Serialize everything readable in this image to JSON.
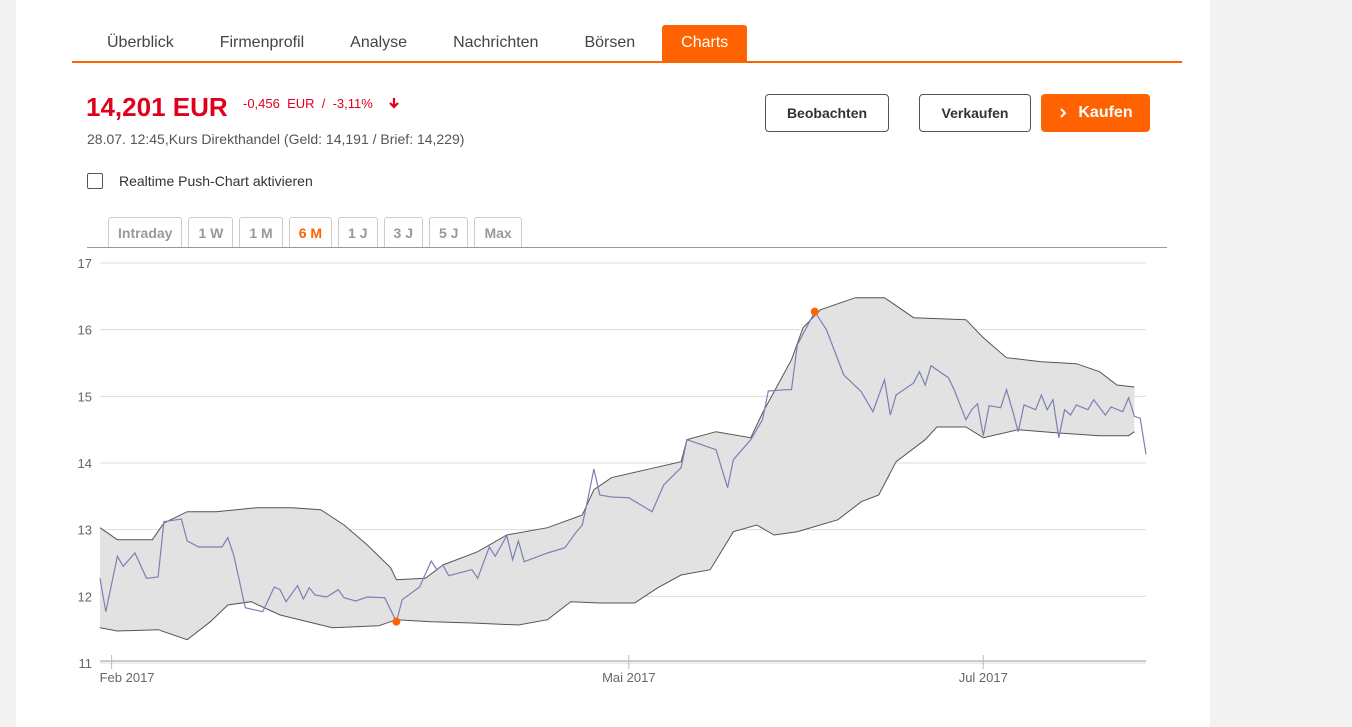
{
  "tabs": [
    "Überblick",
    "Firmenprofil",
    "Analyse",
    "Nachrichten",
    "Börsen",
    "Charts"
  ],
  "active_tab": 5,
  "quote": {
    "price": "14,201 EUR",
    "change": "-0,456  EUR  /  -3,11%",
    "details": "28.07. 12:45,Kurs Direkthandel (Geld: 14,191 / Brief: 14,229)"
  },
  "buttons": [
    "Beobachten",
    "Verkaufen",
    "Kaufen"
  ],
  "checkbox_label": "Realtime Push-Chart aktivieren",
  "ranges": [
    "Intraday",
    "1 W",
    "1 M",
    "6 M",
    "1 J",
    "3 J",
    "5 J",
    "Max"
  ],
  "active_range": 3,
  "chart_data": {
    "type": "line",
    "xlim": [
      30,
      210
    ],
    "xticks": [
      {
        "value": 32,
        "label": "Feb 2017"
      },
      {
        "value": 121,
        "label": "Mai 2017"
      },
      {
        "value": 182,
        "label": "Jul 2017"
      }
    ],
    "ylim": [
      11,
      17
    ],
    "yticks": [
      11,
      12,
      13,
      14,
      15,
      16,
      17
    ],
    "grid": true,
    "x": [
      30,
      31,
      33,
      34,
      36,
      38,
      40,
      41,
      44,
      45,
      47,
      51,
      52,
      53,
      55,
      58,
      60,
      61,
      62,
      64,
      65,
      66,
      67,
      69,
      71,
      72,
      74,
      76,
      79,
      81,
      82,
      85,
      87,
      88,
      89,
      90,
      94,
      95,
      97,
      98,
      100,
      101,
      102,
      103,
      107,
      110,
      112,
      113,
      114,
      115,
      116,
      118,
      121,
      125,
      127,
      130,
      131,
      136,
      138,
      139,
      142,
      144,
      145,
      148,
      149,
      150,
      153,
      155,
      158,
      161,
      163,
      165,
      166,
      167,
      170,
      171,
      172,
      173,
      176,
      177,
      179,
      180,
      181,
      182,
      183,
      185,
      186,
      187,
      188,
      189,
      191,
      192,
      193,
      194,
      195,
      196,
      197,
      198,
      200,
      201,
      203,
      204,
      206,
      207,
      208,
      209,
      210
    ],
    "series": [
      {
        "color": "#7c80b4",
        "values": [
          12.27,
          11.77,
          12.6,
          12.45,
          12.65,
          12.27,
          12.29,
          13.12,
          13.16,
          12.83,
          12.74,
          12.74,
          12.88,
          12.62,
          11.83,
          11.77,
          12.14,
          12.1,
          11.92,
          12.16,
          11.96,
          12.13,
          12.02,
          11.99,
          12.1,
          11.98,
          11.93,
          11.99,
          11.98,
          11.62,
          11.95,
          12.14,
          12.53,
          12.4,
          12.47,
          12.31,
          12.4,
          12.27,
          12.74,
          12.6,
          12.91,
          12.55,
          12.83,
          12.52,
          12.65,
          12.73,
          12.97,
          13.07,
          13.48,
          13.91,
          13.52,
          13.49,
          13.48,
          13.27,
          13.67,
          13.93,
          14.35,
          14.2,
          13.63,
          14.05,
          14.35,
          14.65,
          15.08,
          15.1,
          15.1,
          15.77,
          16.27,
          16.0,
          15.32,
          15.07,
          14.77,
          15.25,
          14.72,
          15.02,
          15.2,
          15.37,
          15.17,
          15.46,
          15.28,
          15.1,
          14.65,
          14.8,
          14.89,
          14.41,
          14.86,
          14.83,
          15.1,
          14.8,
          14.47,
          14.87,
          14.8,
          15.02,
          14.8,
          14.95,
          14.38,
          14.8,
          14.72,
          14.87,
          14.8,
          14.95,
          14.72,
          14.84,
          14.77,
          14.98,
          14.7,
          14.67,
          14.13
        ]
      }
    ],
    "band": {
      "color": "#e2e2e2",
      "edge_color": "#555555",
      "upper": {
        "x": [
          30,
          33,
          39,
          41,
          45,
          50,
          57,
          63,
          68,
          72,
          76,
          80,
          81,
          86,
          89,
          95,
          100,
          107,
          113,
          115,
          118,
          124,
          130,
          131,
          136,
          142,
          144,
          146,
          149,
          151,
          154,
          160,
          165,
          170,
          179,
          182,
          186,
          192,
          198,
          202,
          205,
          208
        ],
        "values": [
          13.03,
          12.85,
          12.85,
          13.1,
          13.27,
          13.27,
          13.33,
          13.33,
          13.3,
          13.07,
          12.77,
          12.43,
          12.25,
          12.27,
          12.47,
          12.67,
          12.92,
          13.03,
          13.22,
          13.6,
          13.78,
          13.9,
          14.02,
          14.35,
          14.47,
          14.38,
          14.75,
          15.07,
          15.55,
          16.03,
          16.3,
          16.48,
          16.48,
          16.18,
          16.15,
          15.88,
          15.58,
          15.52,
          15.49,
          15.37,
          15.17,
          15.14
        ]
      },
      "lower": {
        "x": [
          30,
          33,
          40,
          45,
          49,
          52,
          56,
          61,
          70,
          78,
          81,
          87,
          94,
          102,
          107,
          111,
          116,
          122,
          126,
          130,
          135,
          139,
          143,
          146,
          150,
          157,
          161,
          164,
          167,
          172,
          174,
          179,
          182,
          188,
          195,
          202,
          207,
          208
        ],
        "values": [
          11.53,
          11.48,
          11.5,
          11.35,
          11.62,
          11.87,
          11.92,
          11.72,
          11.53,
          11.56,
          11.65,
          11.62,
          11.6,
          11.57,
          11.65,
          11.92,
          11.9,
          11.9,
          12.13,
          12.32,
          12.4,
          12.97,
          13.07,
          12.92,
          12.97,
          13.15,
          13.42,
          13.52,
          14.02,
          14.35,
          14.54,
          14.54,
          14.38,
          14.5,
          14.45,
          14.41,
          14.41,
          14.47
        ]
      }
    },
    "markers": [
      {
        "x": 81,
        "y": 11.62
      },
      {
        "x": 153,
        "y": 16.27
      }
    ],
    "marker_color": "#ff6200"
  }
}
